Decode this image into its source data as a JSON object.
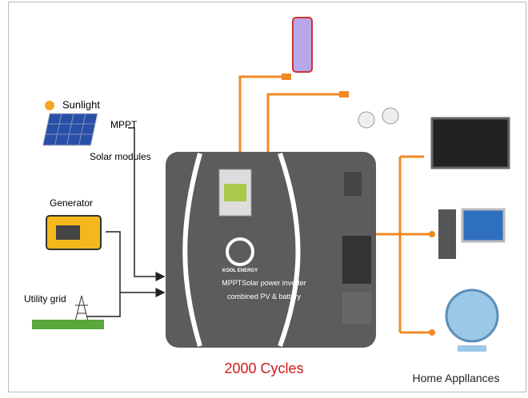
{
  "labels": {
    "sunlight": "Sunlight",
    "mppt": "MPPT",
    "solar_modules": "Solar modules",
    "generator": "Generator",
    "utility_grid": "Utility grid"
  },
  "device": {
    "brand": "KOOL ENERGY",
    "line1": "MPPTSolar power inverter",
    "line2": "combined PV & battery"
  },
  "footer": {
    "cycles": "2000 Cycles",
    "appliances": "Home Appllances"
  }
}
